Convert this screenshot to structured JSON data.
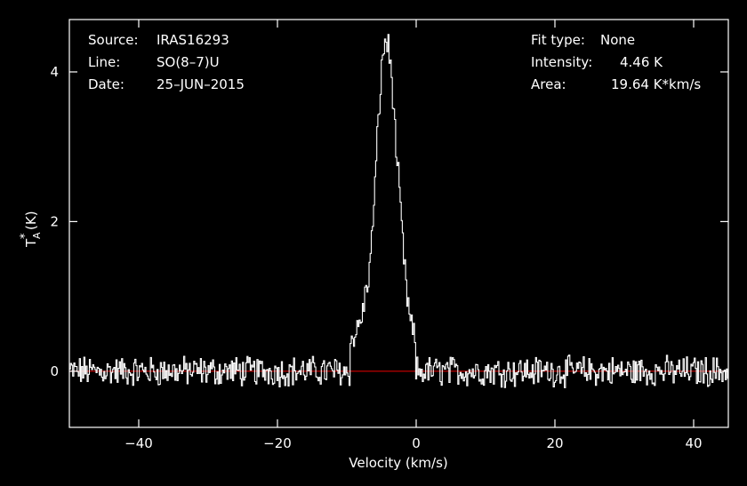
{
  "chart_data": {
    "type": "line",
    "title": "",
    "xlabel": "Velocity (km/s)",
    "ylabel_main": "T",
    "ylabel_sub": "A",
    "ylabel_sup": "*",
    "ylabel_unit": " (K)",
    "xlim": [
      -50,
      45
    ],
    "ylim": [
      -0.75,
      4.7
    ],
    "x_ticks": [
      -40,
      -20,
      0,
      20,
      40
    ],
    "x_tick_labels": [
      "−40",
      "−20",
      "0",
      "20",
      "40"
    ],
    "y_ticks": [
      0,
      2,
      4
    ],
    "y_tick_labels": [
      "0",
      "2",
      "4"
    ],
    "baseline": 0,
    "grid": false,
    "colors": {
      "background": "#000000",
      "spectrum": "#ffffff",
      "baseline": "#d00000",
      "frame": "#ffffff"
    },
    "series": [
      {
        "profile": "gaussian-like emission line with noise",
        "x": [
          -50,
          -48,
          -46,
          -44,
          -42,
          -40,
          -38,
          -36,
          -34,
          -32,
          -30,
          -28,
          -26,
          -24,
          -22,
          -20,
          -18,
          -16,
          -14,
          -12,
          -10,
          -9,
          -8,
          -7,
          -6.5,
          -6,
          -5.5,
          -5,
          -4.5,
          -4,
          -3.5,
          -3,
          -2.5,
          -2,
          -1.5,
          -1,
          0,
          1,
          2,
          3,
          4,
          6,
          8,
          10,
          12,
          14,
          16,
          18,
          20,
          22,
          24,
          26,
          28,
          30,
          32,
          34,
          36,
          38,
          40,
          42,
          44,
          45
        ],
        "y": [
          0.05,
          -0.1,
          0.1,
          -0.05,
          0.15,
          -0.1,
          0.05,
          0.2,
          -0.15,
          0.1,
          -0.05,
          0.0,
          0.15,
          -0.1,
          0.05,
          -0.2,
          0.1,
          0.0,
          -0.1,
          0.1,
          0.3,
          0.45,
          0.7,
          1.2,
          1.7,
          2.5,
          3.4,
          4.1,
          4.46,
          4.3,
          3.8,
          3.0,
          2.4,
          1.7,
          1.1,
          0.7,
          0.3,
          0.15,
          0.1,
          0.05,
          -0.1,
          0.1,
          -0.05,
          0.15,
          -0.1,
          0.05,
          -0.15,
          0.1,
          0.0,
          -0.1,
          0.1,
          0.05,
          -0.2,
          0.1,
          -0.05,
          0.15,
          -0.1,
          0.05,
          0.1,
          -0.1,
          0.05,
          0.1
        ]
      }
    ],
    "annotations_left": [
      {
        "label": "Source:",
        "value": "IRAS16293"
      },
      {
        "label": "Line:",
        "value": "SO(8–7)U"
      },
      {
        "label": "Date:",
        "value": "25–JUN–2015"
      }
    ],
    "annotations_right": [
      {
        "label": "Fit type:",
        "value": "None"
      },
      {
        "label": "Intensity:",
        "value": "4.46 K"
      },
      {
        "label": "Area:",
        "value": "19.64 K*km/s"
      }
    ]
  }
}
